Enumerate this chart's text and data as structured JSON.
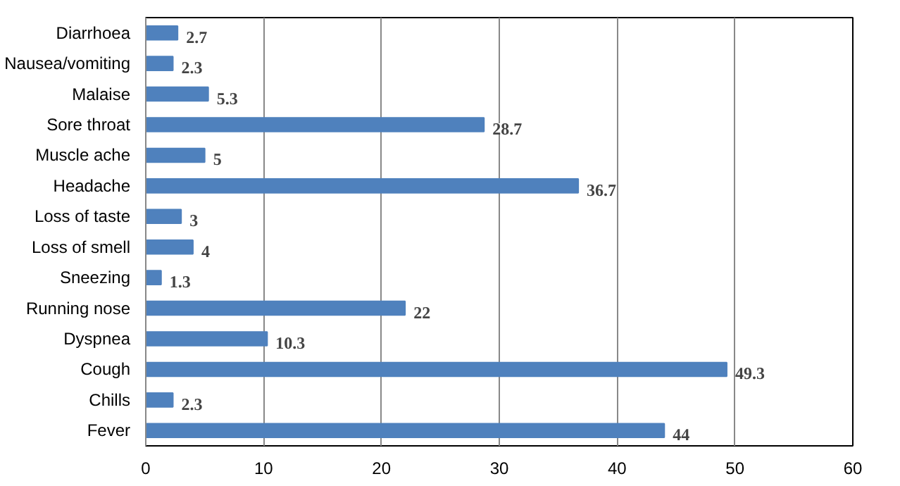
{
  "chart_data": {
    "type": "bar",
    "orientation": "horizontal",
    "categories": [
      "Diarrhoea",
      "Nausea/vomiting",
      "Malaise",
      "Sore throat",
      "Muscle ache",
      "Headache",
      "Loss of taste",
      "Loss of smell",
      "Sneezing",
      "Running nose",
      "Dyspnea",
      "Cough",
      "Chills",
      "Fever"
    ],
    "values": [
      2.7,
      2.3,
      5.3,
      28.7,
      5,
      36.7,
      3,
      4,
      1.3,
      22,
      10.3,
      49.3,
      2.3,
      44
    ],
    "color": "#4f81bd",
    "xlim": [
      0,
      60
    ],
    "xticks": [
      0,
      10,
      20,
      30,
      40,
      50,
      60
    ],
    "grid": "x",
    "data_labels": true
  }
}
